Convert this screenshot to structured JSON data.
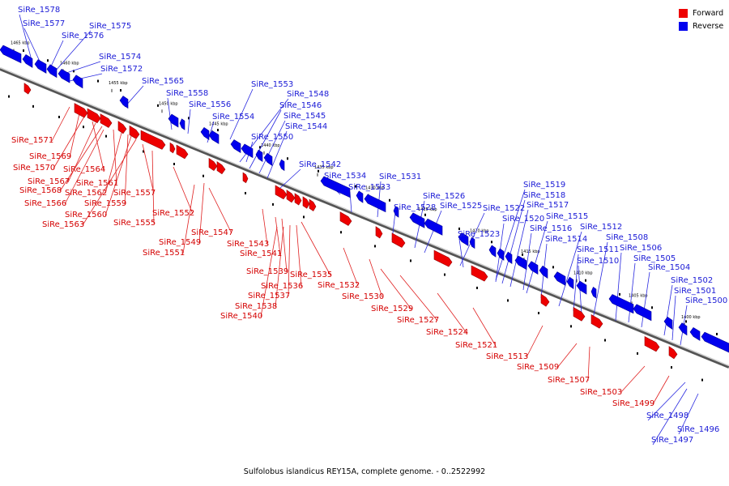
{
  "caption": "Sulfolobus islandicus REY15A, complete genome. - 0..2522992",
  "legend": [
    {
      "label": "Forward",
      "color": "#ee0000"
    },
    {
      "label": "Reverse",
      "color": "#0000ee"
    }
  ],
  "ticks": [
    "1465 kbp",
    "1460 kbp",
    "1455 kbp",
    "1450 kbp",
    "1445 kbp",
    "1440 kbp",
    "1435 kbp",
    "1430 kbp",
    "1425 kbp",
    "1420 kbp",
    "1415 kbp",
    "1410 kbp",
    "1405 kbp",
    "1400 kbp"
  ],
  "chart_data": {
    "type": "linear-genome-map",
    "strands": [
      "Forward",
      "Reverse"
    ],
    "reverse_genes": [
      "SiRe_1578",
      "SiRe_1577",
      "SiRe_1576",
      "SiRe_1575",
      "SiRe_1574",
      "SiRe_1572",
      "SiRe_1565",
      "SiRe_1558",
      "SiRe_1556",
      "SiRe_1554",
      "SiRe_1553",
      "SiRe_1548",
      "SiRe_1546",
      "SiRe_1545",
      "SiRe_1544",
      "SiRe_1550",
      "SiRe_1542",
      "SiRe_1534",
      "SiRe_1533",
      "SiRe_1531",
      "SiRe_1528",
      "SiRe_1526",
      "SiRe_1525",
      "SiRe_1522",
      "SiRe_1523",
      "SiRe_1519",
      "SiRe_1518",
      "SiRe_1517",
      "SiRe_1520",
      "SiRe_1516",
      "SiRe_1515",
      "SiRe_1514",
      "SiRe_1512",
      "SiRe_1511",
      "SiRe_1510",
      "SiRe_1508",
      "SiRe_1506",
      "SiRe_1505",
      "SiRe_1504",
      "SiRe_1502",
      "SiRe_1501",
      "SiRe_1500",
      "SiRe_1498",
      "SiRe_1497",
      "SiRe_1496"
    ],
    "forward_genes": [
      "SiRe_1571",
      "SiRe_1569",
      "SiRe_1570",
      "SiRe_1564",
      "SiRe_1567",
      "SiRe_1568",
      "SiRe_1561",
      "SiRe_1566",
      "SiRe_1562",
      "SiRe_1557",
      "SiRe_1559",
      "SiRe_1560",
      "SiRe_1563",
      "SiRe_1555",
      "SiRe_1552",
      "SiRe_1547",
      "SiRe_1549",
      "SiRe_1551",
      "SiRe_1543",
      "SiRe_1541",
      "SiRe_1539",
      "SiRe_1535",
      "SiRe_1536",
      "SiRe_1537",
      "SiRe_1538",
      "SiRe_1540",
      "SiRe_1532",
      "SiRe_1530",
      "SiRe_1529",
      "SiRe_1527",
      "SiRe_1524",
      "SiRe_1521",
      "SiRe_1513",
      "SiRe_1509",
      "SiRe_1507",
      "SiRe_1503",
      "SiRe_1499"
    ]
  }
}
